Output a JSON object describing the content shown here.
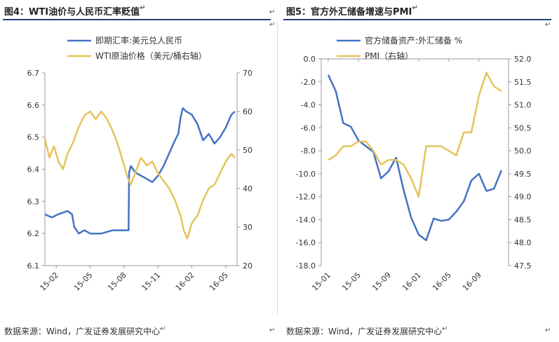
{
  "left": {
    "title": "图4：WTI油价与人民币汇率贬值",
    "source": "数据来源：Wind，广发证券发展研究中心",
    "chart_data": {
      "type": "line",
      "x_ticks": [
        "15-02",
        "15-05",
        "15-08",
        "15-11",
        "16-02",
        "16-05"
      ],
      "x_range": [
        "15-01",
        "16-06"
      ],
      "left_axis": {
        "min": 6.1,
        "max": 6.7,
        "ticks": [
          "6.1",
          "6.2",
          "6.3",
          "6.4",
          "6.5",
          "6.6",
          "6.7"
        ]
      },
      "right_axis": {
        "min": 20,
        "max": 70,
        "ticks": [
          "20",
          "30",
          "40",
          "50",
          "60",
          "70"
        ]
      },
      "series": [
        {
          "name": "即期汇率:美元兑人民币",
          "axis": "left",
          "color": "#4472c4",
          "points": [
            [
              0,
              6.26
            ],
            [
              0.6,
              6.25
            ],
            [
              1.2,
              6.26
            ],
            [
              2.0,
              6.27
            ],
            [
              2.4,
              6.26
            ],
            [
              2.6,
              6.22
            ],
            [
              3.0,
              6.2
            ],
            [
              3.5,
              6.21
            ],
            [
              4.0,
              6.2
            ],
            [
              5.0,
              6.2
            ],
            [
              6.0,
              6.21
            ],
            [
              7.0,
              6.21
            ],
            [
              7.4,
              6.21
            ],
            [
              7.45,
              6.39
            ],
            [
              7.6,
              6.41
            ],
            [
              8.0,
              6.39
            ],
            [
              9.0,
              6.37
            ],
            [
              9.5,
              6.36
            ],
            [
              10.0,
              6.38
            ],
            [
              10.5,
              6.41
            ],
            [
              11.0,
              6.45
            ],
            [
              11.5,
              6.49
            ],
            [
              11.8,
              6.51
            ],
            [
              12.0,
              6.56
            ],
            [
              12.2,
              6.59
            ],
            [
              12.5,
              6.58
            ],
            [
              13.0,
              6.57
            ],
            [
              13.5,
              6.54
            ],
            [
              14.0,
              6.49
            ],
            [
              14.5,
              6.51
            ],
            [
              15.0,
              6.48
            ],
            [
              15.5,
              6.5
            ],
            [
              16.0,
              6.53
            ],
            [
              16.5,
              6.57
            ],
            [
              16.8,
              6.58
            ]
          ]
        },
        {
          "name": "WTI原油价格（美元/桶右轴）",
          "axis": "right",
          "color": "#e6c35c",
          "points": [
            [
              0,
              53
            ],
            [
              0.4,
              48
            ],
            [
              0.8,
              51
            ],
            [
              1.2,
              47
            ],
            [
              1.6,
              45
            ],
            [
              2.0,
              49
            ],
            [
              2.5,
              52
            ],
            [
              3.0,
              56
            ],
            [
              3.5,
              59
            ],
            [
              4.0,
              60
            ],
            [
              4.5,
              58
            ],
            [
              5.0,
              60
            ],
            [
              5.5,
              58
            ],
            [
              6.0,
              55
            ],
            [
              6.5,
              51
            ],
            [
              7.0,
              46
            ],
            [
              7.3,
              43
            ],
            [
              7.6,
              41
            ],
            [
              8.0,
              44
            ],
            [
              8.5,
              48
            ],
            [
              9.0,
              46
            ],
            [
              9.5,
              47
            ],
            [
              10.0,
              44
            ],
            [
              10.5,
              42
            ],
            [
              11.0,
              40
            ],
            [
              11.5,
              37
            ],
            [
              12.0,
              33
            ],
            [
              12.3,
              29
            ],
            [
              12.6,
              27
            ],
            [
              13.0,
              31
            ],
            [
              13.5,
              33
            ],
            [
              14.0,
              37
            ],
            [
              14.5,
              40
            ],
            [
              15.0,
              41
            ],
            [
              15.5,
              44
            ],
            [
              16.0,
              47
            ],
            [
              16.5,
              49
            ],
            [
              16.8,
              48
            ]
          ]
        }
      ]
    }
  },
  "right": {
    "title": "图5：官方外汇储备增速与PMI",
    "source": "数据来源：Wind，广发证券发展研究中心",
    "chart_data": {
      "type": "line",
      "x_ticks": [
        "15-01",
        "15-05",
        "15-09",
        "16-01",
        "16-05",
        "16-09"
      ],
      "left_axis": {
        "min": -18,
        "max": 0,
        "ticks": [
          "0.0",
          "-2.0",
          "-4.0",
          "-6.0",
          "-8.0",
          "-10.0",
          "-12.0",
          "-14.0",
          "-16.0",
          "-18.0"
        ]
      },
      "right_axis": {
        "min": 47.5,
        "max": 52,
        "ticks": [
          "52.0",
          "51.5",
          "51.0",
          "50.5",
          "50.0",
          "49.5",
          "49.0",
          "48.5",
          "48.0",
          "47.5"
        ]
      },
      "series": [
        {
          "name": "官方储备资产:外汇储备 %",
          "axis": "left",
          "color": "#4472c4",
          "values": [
            -1.4,
            -2.8,
            -5.6,
            -5.9,
            -7.1,
            -7.6,
            -8.1,
            -10.4,
            -9.8,
            -8.6,
            -11.4,
            -13.8,
            -15.3,
            -15.8,
            -13.9,
            -14.1,
            -14.0,
            -13.3,
            -12.4,
            -10.6,
            -10.0,
            -11.5,
            -11.3,
            -9.7
          ]
        },
        {
          "name": "PMI（右轴）",
          "axis": "right",
          "color": "#e6c35c",
          "values": [
            49.8,
            49.9,
            50.1,
            50.1,
            50.2,
            50.2,
            50.0,
            49.7,
            49.8,
            49.8,
            49.7,
            49.4,
            49.0,
            50.1,
            50.1,
            50.1,
            50.0,
            49.9,
            50.4,
            50.4,
            51.2,
            51.7,
            51.4,
            51.3
          ]
        }
      ]
    }
  },
  "marks": {
    "para": "↵"
  }
}
